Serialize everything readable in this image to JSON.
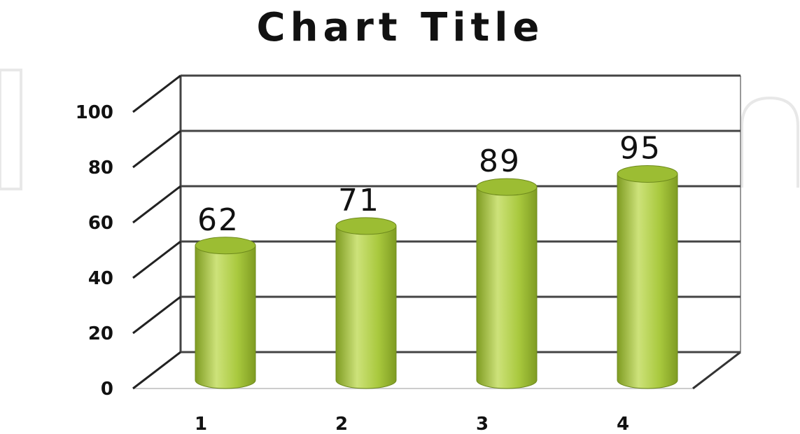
{
  "chart_data": {
    "type": "bar",
    "style": "3d-cylinder",
    "title": "Chart Title",
    "categories": [
      "1",
      "2",
      "3",
      "4"
    ],
    "values": [
      62,
      71,
      89,
      95
    ],
    "data_labels": [
      "62",
      "71",
      "89",
      "95"
    ],
    "ylim": [
      0,
      100
    ],
    "yticks": [
      "0",
      "20",
      "40",
      "60",
      "80",
      "100"
    ],
    "xlabel": "",
    "ylabel": "",
    "grid": true,
    "legend": "none",
    "colors": {
      "bar": "#a9c93e",
      "bar_light": "#cde27a",
      "bar_dark": "#7f9c22",
      "bar_top": "#9cbd33",
      "grid": "#444444"
    }
  }
}
